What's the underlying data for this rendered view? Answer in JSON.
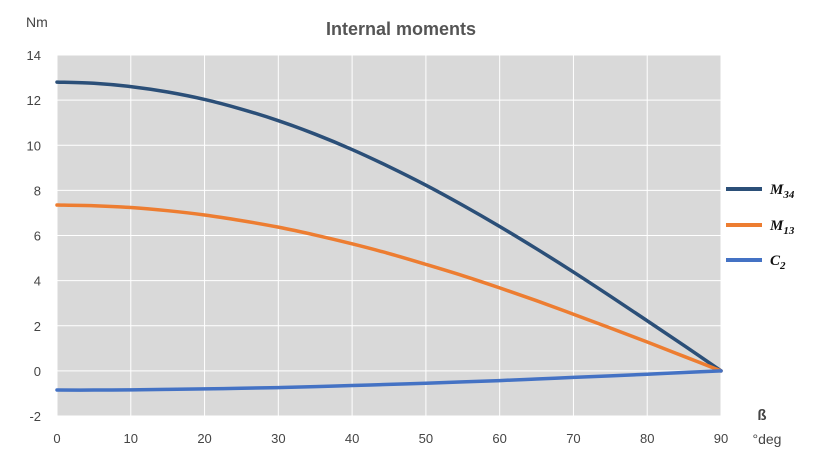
{
  "chart_data": {
    "type": "line",
    "title": "Internal moments",
    "ylabel": "Nm",
    "xlabel": "ß",
    "xunit": "°deg",
    "xlim": [
      0,
      90
    ],
    "ylim": [
      -2,
      14
    ],
    "xticks": [
      0,
      10,
      20,
      30,
      40,
      50,
      60,
      70,
      80,
      90
    ],
    "yticks": [
      -2,
      0,
      2,
      4,
      6,
      8,
      10,
      12,
      14
    ],
    "grid": true,
    "legend_position": "right",
    "x": [
      0,
      5,
      10,
      15,
      20,
      25,
      30,
      35,
      40,
      45,
      50,
      55,
      60,
      65,
      70,
      75,
      80,
      85,
      90
    ],
    "series": [
      {
        "name": "M",
        "subscript": "34",
        "color": "#2b4f78",
        "values": [
          12.8,
          12.75,
          12.6,
          12.36,
          12.03,
          11.6,
          11.09,
          10.49,
          9.81,
          9.05,
          8.23,
          7.34,
          6.4,
          5.41,
          4.38,
          3.31,
          2.22,
          1.12,
          0.0
        ]
      },
      {
        "name": "M",
        "subscript": "13",
        "color": "#ed7d31",
        "values": [
          7.35,
          7.32,
          7.24,
          7.1,
          6.91,
          6.66,
          6.37,
          6.02,
          5.63,
          5.2,
          4.72,
          4.22,
          3.68,
          3.11,
          2.51,
          1.9,
          1.28,
          0.64,
          0.0
        ]
      },
      {
        "name": "C",
        "subscript": "2",
        "color": "#4472c4",
        "values": [
          -0.85,
          -0.85,
          -0.84,
          -0.82,
          -0.8,
          -0.77,
          -0.74,
          -0.7,
          -0.65,
          -0.6,
          -0.55,
          -0.49,
          -0.43,
          -0.36,
          -0.29,
          -0.22,
          -0.15,
          -0.07,
          0.0
        ]
      }
    ]
  }
}
